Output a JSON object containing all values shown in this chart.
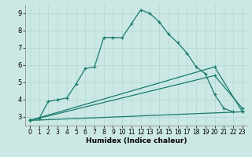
{
  "xlabel": "Humidex (Indice chaleur)",
  "line_color": "#1a7a6e",
  "bg_color": "#cce8e4",
  "grid_color": "#b0d8d4",
  "ylim": [
    2.5,
    9.5
  ],
  "xlim": [
    -0.5,
    23.5
  ],
  "yticks": [
    3,
    4,
    5,
    6,
    7,
    8,
    9
  ],
  "xticks": [
    0,
    1,
    2,
    3,
    4,
    5,
    6,
    7,
    8,
    9,
    10,
    11,
    12,
    13,
    14,
    15,
    16,
    17,
    18,
    19,
    20,
    21,
    22,
    23
  ],
  "curve1_x": [
    0,
    1,
    2,
    3,
    4,
    5,
    6,
    7,
    8,
    9,
    10,
    11,
    12,
    13,
    14,
    15,
    16,
    17,
    18,
    19,
    20,
    21,
    22
  ],
  "curve1_y": [
    2.8,
    2.9,
    3.9,
    4.0,
    4.1,
    4.9,
    5.8,
    5.9,
    7.6,
    7.6,
    7.6,
    8.4,
    9.2,
    9.0,
    8.5,
    7.8,
    7.3,
    6.7,
    5.9,
    5.5,
    4.3,
    3.5,
    3.3
  ],
  "line2_x": [
    0,
    20,
    23
  ],
  "line2_y": [
    2.8,
    5.9,
    3.3
  ],
  "line3_x": [
    0,
    20,
    23
  ],
  "line3_y": [
    2.8,
    5.4,
    3.5
  ],
  "line4_x": [
    0,
    23
  ],
  "line4_y": [
    2.8,
    3.3
  ],
  "lw": 0.9,
  "ms": 3.5
}
